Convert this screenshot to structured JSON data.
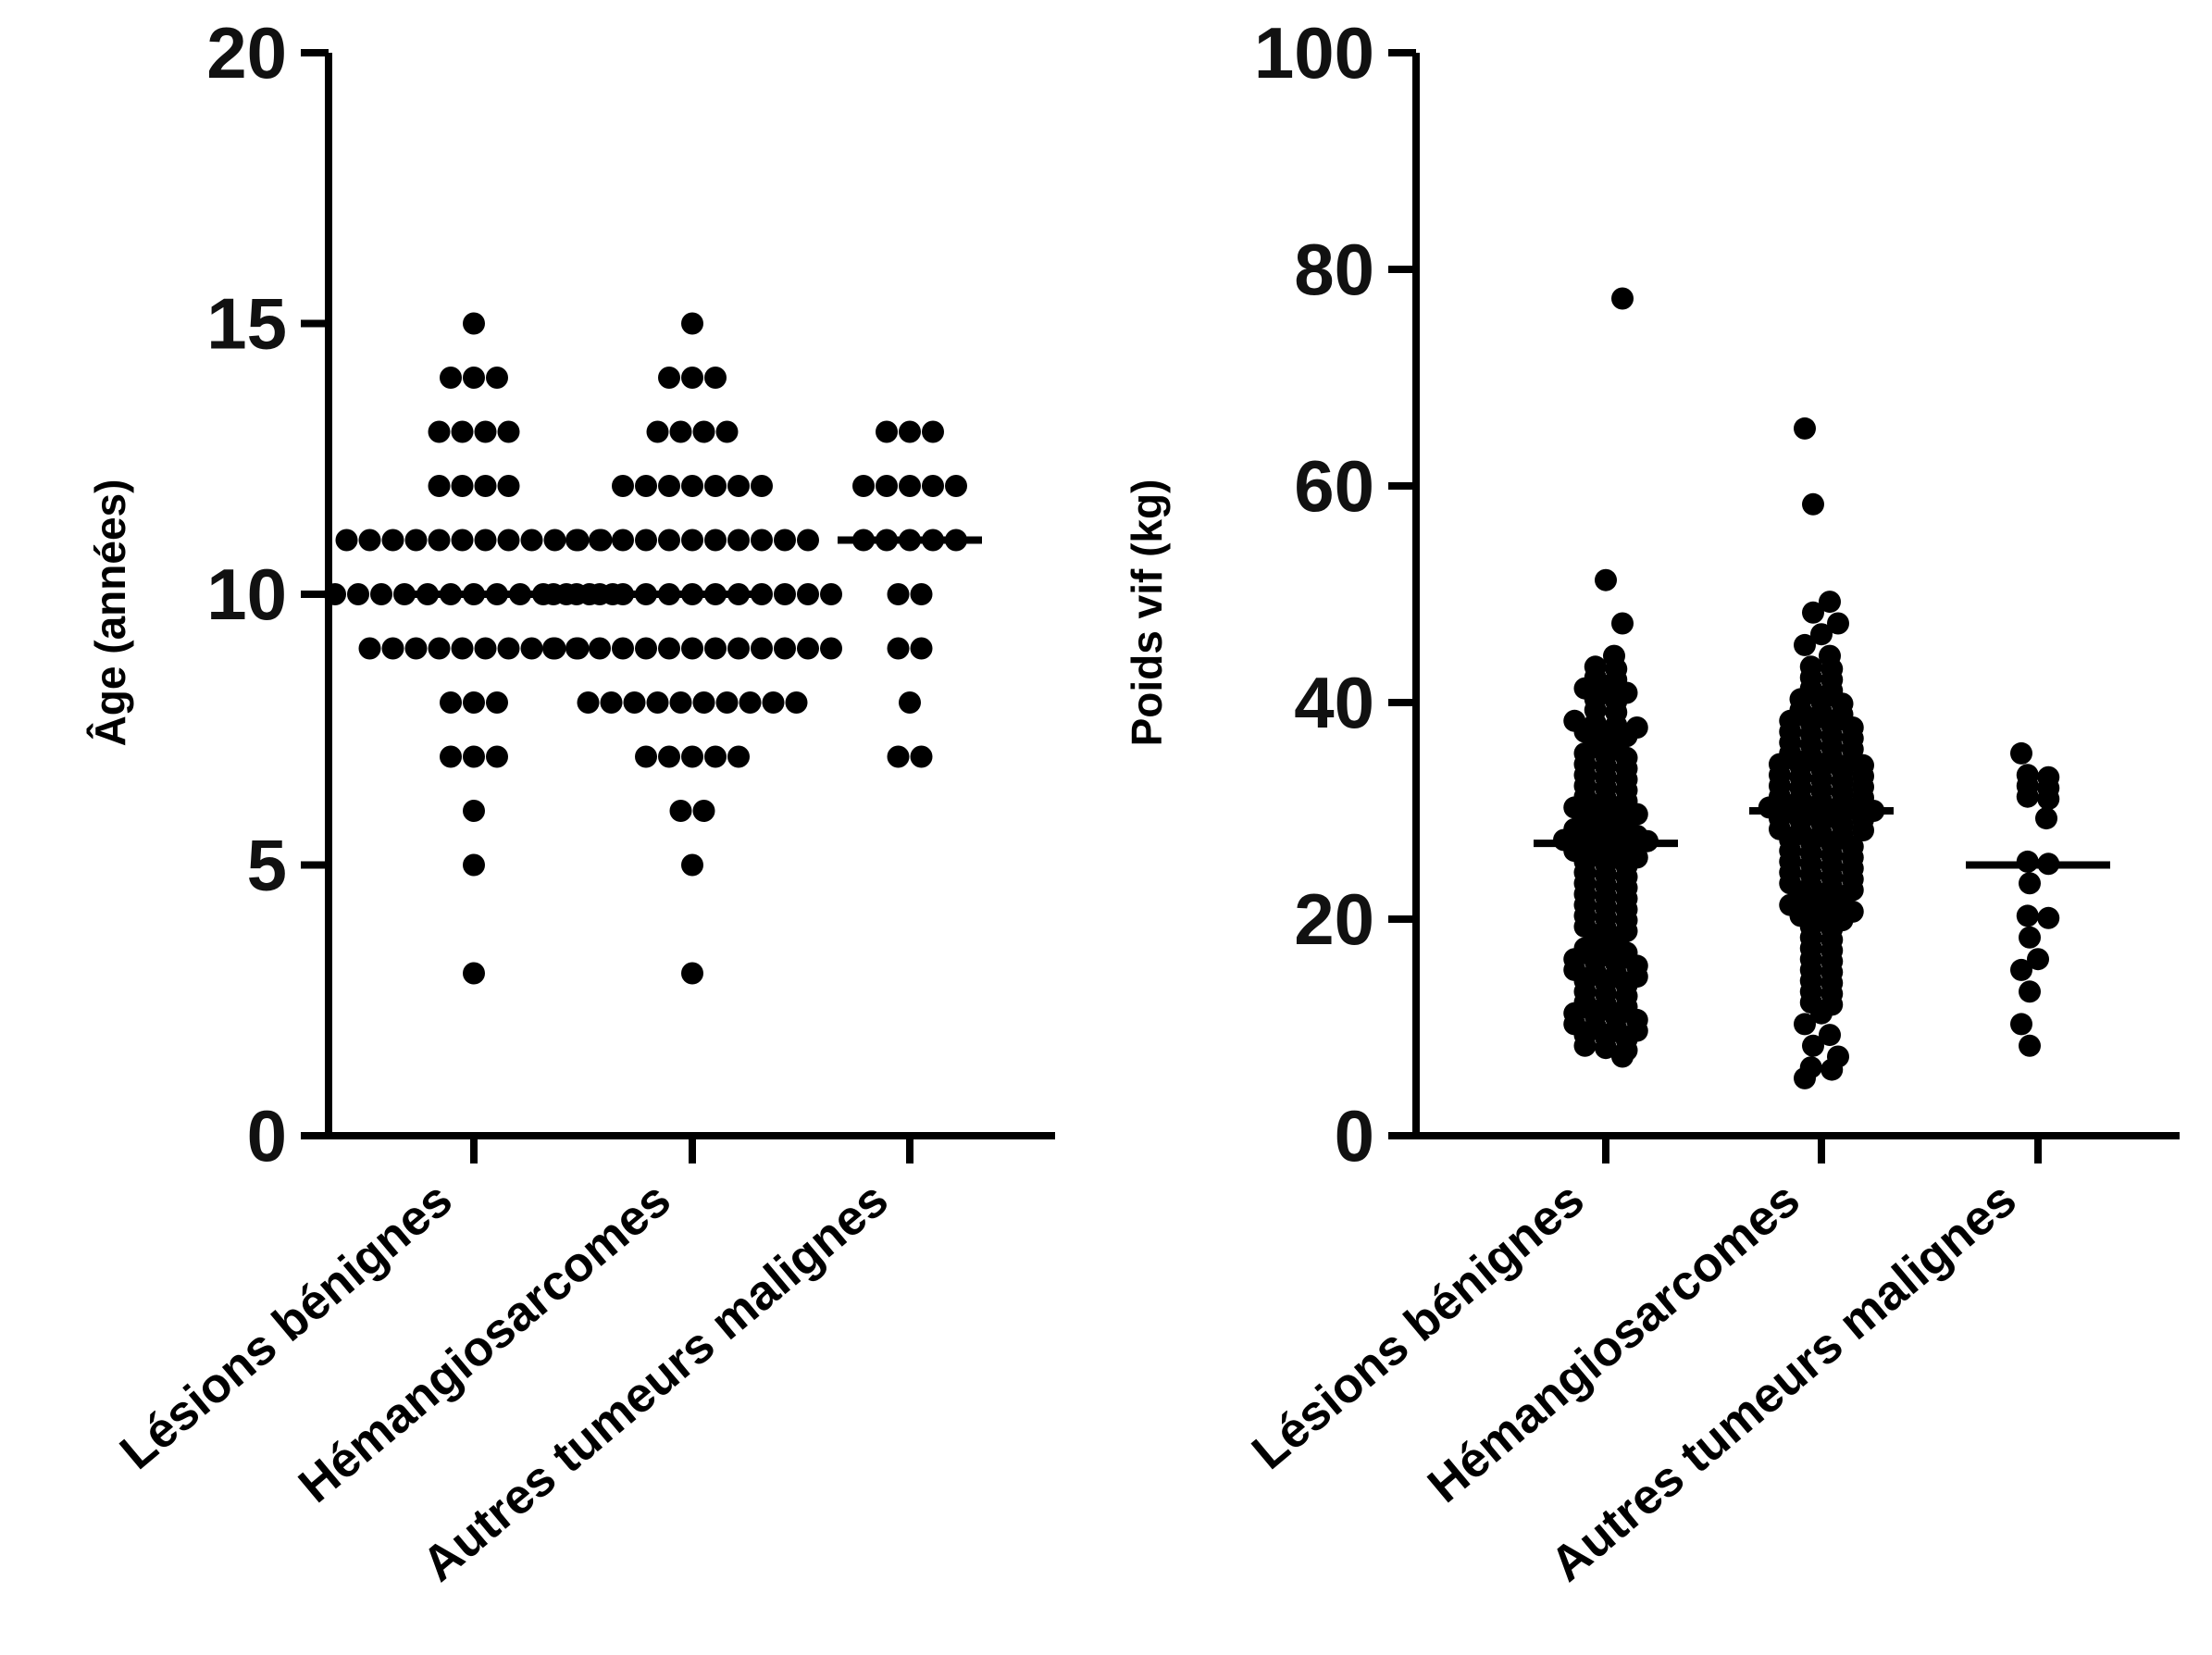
{
  "chart_data": [
    {
      "type": "scatter",
      "subtype": "beeswarm",
      "xlabel": "",
      "ylabel": "Âge (années)",
      "ylim": [
        0,
        20
      ],
      "yticks": [
        0,
        5,
        10,
        15,
        20
      ],
      "categories": [
        "Lésions bénignes",
        "Hémangiosarcomes",
        "Autres tumeurs malignes"
      ],
      "median_line": true,
      "groups": [
        {
          "category": "Lésions bénignes",
          "median": 10,
          "counts": {
            "3": 1,
            "5": 1,
            "6": 1,
            "7": 3,
            "8": 3,
            "9": 10,
            "10": 13,
            "11": 12,
            "12": 4,
            "13": 4,
            "14": 3,
            "15": 1
          }
        },
        {
          "category": "Hémangiosarcomes",
          "median": 10,
          "counts": {
            "3": 1,
            "5": 1,
            "6": 2,
            "7": 5,
            "8": 10,
            "9": 13,
            "10": 13,
            "11": 11,
            "12": 7,
            "13": 4,
            "14": 3,
            "15": 1
          }
        },
        {
          "category": "Autres tumeurs malignes",
          "median": 11,
          "counts": {
            "7": 2,
            "8": 1,
            "9": 2,
            "10": 2,
            "11": 5,
            "12": 5,
            "13": 3
          }
        }
      ]
    },
    {
      "type": "scatter",
      "subtype": "beeswarm",
      "xlabel": "",
      "ylabel": "Poids vif (kg)",
      "ylim": [
        0,
        100
      ],
      "yticks": [
        0,
        20,
        40,
        60,
        80,
        100
      ],
      "categories": [
        "Lésions bénignes",
        "Hémangiosarcomes",
        "Autres tumeurs malignes"
      ],
      "median_line": true,
      "groups": [
        {
          "category": "Lésions bénignes",
          "median": 27,
          "values": [
            77,
            51,
            47,
            44,
            43,
            43,
            42,
            42,
            41,
            41,
            41,
            40,
            40,
            39,
            39,
            38,
            38,
            38,
            38,
            37,
            37,
            37,
            36,
            36,
            35,
            35,
            35,
            34,
            34,
            34,
            33,
            33,
            33,
            32,
            32,
            32,
            31,
            31,
            31,
            30,
            30,
            30,
            30,
            29,
            29,
            29,
            28,
            28,
            28,
            28,
            27,
            27,
            27,
            27,
            27,
            26,
            26,
            26,
            26,
            25,
            25,
            25,
            24,
            24,
            24,
            23,
            23,
            23,
            22,
            22,
            22,
            21,
            21,
            21,
            20,
            20,
            20,
            19,
            19,
            19,
            18,
            18,
            17,
            17,
            17,
            16,
            16,
            16,
            16,
            15,
            15,
            15,
            15,
            14,
            14,
            14,
            13,
            13,
            13,
            12,
            12,
            12,
            11,
            11,
            11,
            11,
            10,
            10,
            10,
            10,
            9,
            9,
            9,
            8,
            8,
            8,
            7
          ]
        },
        {
          "category": "Hémangiosarcomes",
          "median": 30,
          "values": [
            65,
            58,
            49,
            48,
            47,
            46,
            45,
            44,
            43,
            43,
            42,
            42,
            41,
            41,
            40,
            40,
            40,
            39,
            39,
            39,
            38,
            38,
            38,
            38,
            37,
            37,
            37,
            37,
            36,
            36,
            36,
            36,
            35,
            35,
            35,
            35,
            34,
            34,
            34,
            34,
            34,
            33,
            33,
            33,
            33,
            33,
            32,
            32,
            32,
            32,
            32,
            31,
            31,
            31,
            31,
            31,
            30,
            30,
            30,
            30,
            30,
            30,
            29,
            29,
            29,
            29,
            29,
            28,
            28,
            28,
            28,
            28,
            27,
            27,
            27,
            27,
            26,
            26,
            26,
            26,
            25,
            25,
            25,
            25,
            24,
            24,
            24,
            24,
            23,
            23,
            23,
            23,
            22,
            22,
            22,
            21,
            21,
            21,
            21,
            20,
            20,
            20,
            19,
            19,
            18,
            18,
            17,
            17,
            16,
            16,
            15,
            15,
            14,
            14,
            13,
            13,
            12,
            12,
            11,
            10,
            9,
            8,
            7,
            6,
            6,
            5
          ]
        },
        {
          "category": "Autres tumeurs malignes",
          "median": 25,
          "values": [
            35,
            33,
            33,
            32,
            32,
            31,
            31,
            29,
            25,
            25,
            23,
            20,
            20,
            18,
            16,
            15,
            13,
            10,
            8
          ]
        }
      ]
    }
  ]
}
